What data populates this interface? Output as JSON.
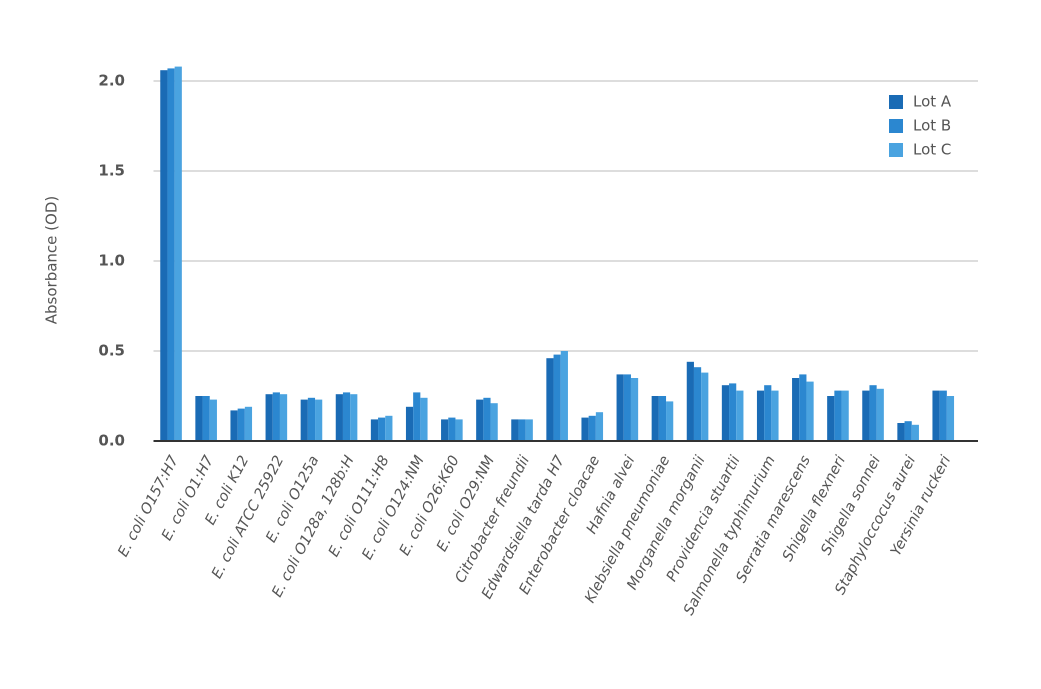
{
  "chart_data": {
    "type": "bar",
    "y_label": "Absorbance (OD)",
    "categories": [
      "E. coli O157:H7",
      "E. coli O1:H7",
      "E. coli K12",
      "E. coli ATCC 25922",
      "E. coli O125a",
      "E. coli O128a, 128b:H",
      "E. coli O111:H8",
      "E. coli O124:NM",
      "E. coli O26:K60",
      "E. coli O29:NM",
      "Citrobacter freundii",
      "Edwardsiella tarda H7",
      "Enterobacter cloacae",
      "Hafnia alvei",
      "Klebsiella pneumoniae",
      "Morganella morganii",
      "Providencia stuartii",
      "Salmonella typhimurium",
      "Serratia marescens",
      "Shigella flexneri",
      "Shigella sonnei",
      "Staphyloccocus aurei",
      "Yersinia ruckeri"
    ],
    "series": [
      {
        "name": "Lot A",
        "color": "#1a6bb5",
        "values": [
          2.06,
          0.25,
          0.17,
          0.26,
          0.23,
          0.26,
          0.12,
          0.19,
          0.12,
          0.23,
          0.12,
          0.46,
          0.13,
          0.37,
          0.25,
          0.44,
          0.31,
          0.28,
          0.35,
          0.25,
          0.28,
          0.1,
          0.28
        ]
      },
      {
        "name": "Lot B",
        "color": "#2b87d0",
        "values": [
          2.07,
          0.25,
          0.18,
          0.27,
          0.24,
          0.27,
          0.13,
          0.27,
          0.13,
          0.24,
          0.12,
          0.48,
          0.14,
          0.37,
          0.25,
          0.41,
          0.32,
          0.31,
          0.37,
          0.28,
          0.31,
          0.11,
          0.28
        ]
      },
      {
        "name": "Lot C",
        "color": "#4aa3e0",
        "values": [
          2.08,
          0.23,
          0.19,
          0.26,
          0.23,
          0.26,
          0.14,
          0.24,
          0.12,
          0.21,
          0.12,
          0.5,
          0.16,
          0.35,
          0.22,
          0.38,
          0.28,
          0.28,
          0.33,
          0.28,
          0.29,
          0.09,
          0.25
        ]
      }
    ],
    "ylim": [
      0,
      2.2
    ],
    "yticks": [
      {
        "value": 0,
        "label": "0.0"
      },
      0.5,
      {
        "value": 1,
        "label": "1.0"
      },
      1.5,
      {
        "value": 2,
        "label": "2.0"
      }
    ],
    "grid": true,
    "legend": "top-right"
  }
}
